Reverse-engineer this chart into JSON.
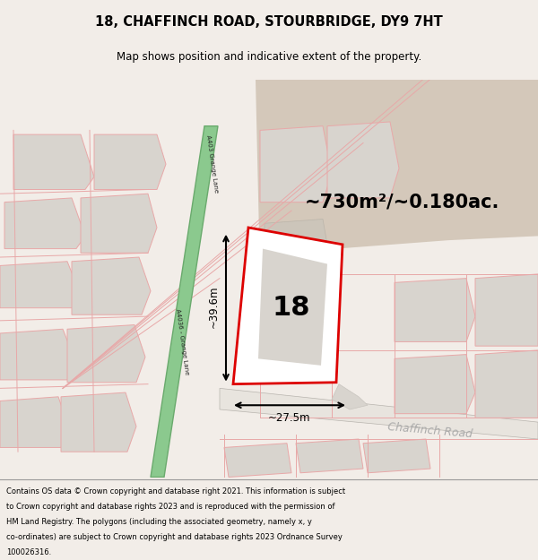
{
  "title": "18, CHAFFINCH ROAD, STOURBRIDGE, DY9 7HT",
  "subtitle": "Map shows position and indicative extent of the property.",
  "area_text": "~730m²/~0.180ac.",
  "number_label": "18",
  "width_label": "~27.5m",
  "height_label": "~39.6m",
  "road_label_chaffinch": "Chaffinch Road",
  "road_label_a4036": "A4036 - Grange Lane",
  "road_label_a403": "A403 Grange Lane",
  "footer_lines": [
    "Contains OS data © Crown copyright and database right 2021. This information is subject",
    "to Crown copyright and database rights 2023 and is reproduced with the permission of",
    "HM Land Registry. The polygons (including the associated geometry, namely x, y",
    "co-ordinates) are subject to Crown copyright and database rights 2023 Ordnance Survey",
    "100026316."
  ],
  "bg_color": "#f2ede8",
  "map_white": "#ffffff",
  "plot_outline": "#dd0000",
  "road_green_fill": "#8bc98e",
  "road_green_edge": "#6aaa6d",
  "block_gray_fill": "#d8d4ce",
  "block_gray_edge": "#c8c4be",
  "plot_pink_edge": "#e8a8a8",
  "tan_fill": "#d4c8ba",
  "footer_bg": "#ffffff",
  "chaffinch_road_color": "#b8b4ae",
  "chaffinch_road_fill": "#e8e4de"
}
